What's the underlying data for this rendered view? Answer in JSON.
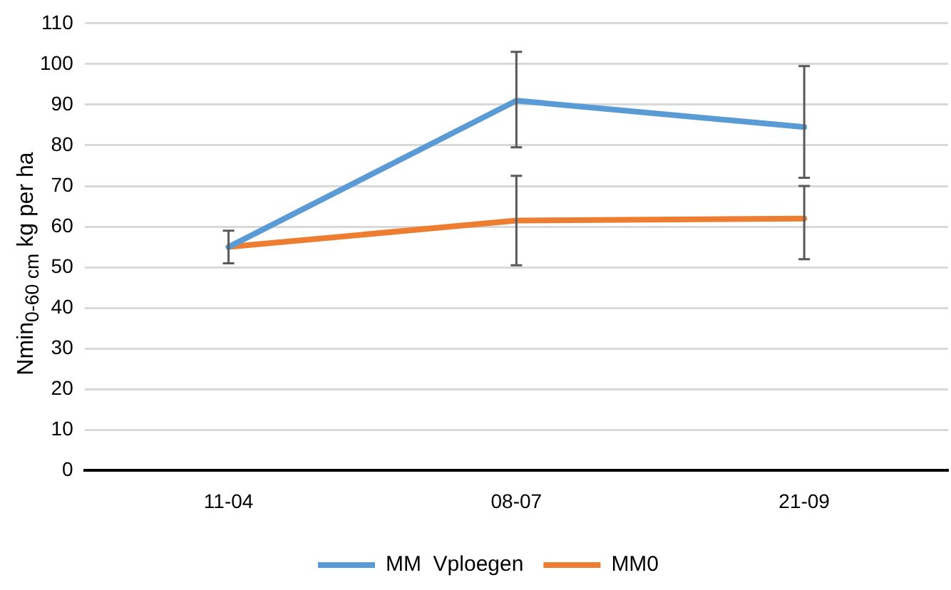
{
  "chart_data": {
    "type": "line",
    "ylabel": "Nmin$_{0-60 cm}$ kg per ha",
    "categories": [
      "11-04",
      "08-07",
      "21-09"
    ],
    "series": [
      {
        "name": "MM  Vploegen",
        "color": "#5b9bd5",
        "values": [
          55,
          91,
          84.5
        ],
        "errors": [
          [
            51,
            59
          ],
          [
            79.5,
            103
          ],
          [
            72,
            99.5
          ]
        ]
      },
      {
        "name": "MM0",
        "color": "#ed7d31",
        "values": [
          55,
          61.5,
          62
        ],
        "errors": [
          null,
          [
            50.5,
            72.5
          ],
          [
            52,
            70
          ]
        ]
      }
    ],
    "ylim": [
      0,
      110
    ],
    "yticks": [
      0,
      10,
      20,
      30,
      40,
      50,
      60,
      70,
      80,
      90,
      100,
      110
    ],
    "grid": "y",
    "legend": "bottom",
    "marker": "none",
    "line_style": "solid"
  }
}
